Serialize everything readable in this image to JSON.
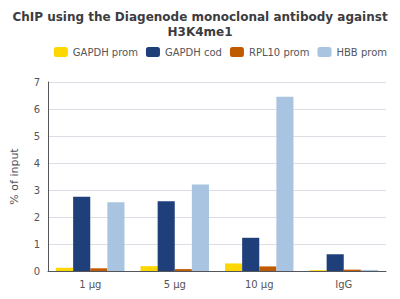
{
  "chart_data": {
    "type": "bar",
    "title": "ChIP using the Diagenode monoclonal antibody against\nH3K4me1",
    "ylabel": "% of input",
    "categories": [
      "1 μg",
      "5 μg",
      "10 μg",
      "IgG"
    ],
    "series": [
      {
        "name": "GAPDH prom",
        "color": "#FFD700",
        "values": [
          0.12,
          0.18,
          0.28,
          0.03
        ]
      },
      {
        "name": "GAPDH cod",
        "color": "#1F3F7A",
        "values": [
          2.75,
          2.58,
          1.23,
          0.62
        ]
      },
      {
        "name": "RPL10 prom",
        "color": "#C05A00",
        "values": [
          0.1,
          0.07,
          0.17,
          0.05
        ]
      },
      {
        "name": "HBB prom",
        "color": "#A8C4E0",
        "values": [
          2.55,
          3.2,
          6.45,
          0.04
        ]
      }
    ],
    "ylim": [
      0,
      7
    ],
    "yticks": [
      0,
      1,
      2,
      3,
      4,
      5,
      6,
      7
    ],
    "grid": true,
    "legend": "upper right"
  }
}
